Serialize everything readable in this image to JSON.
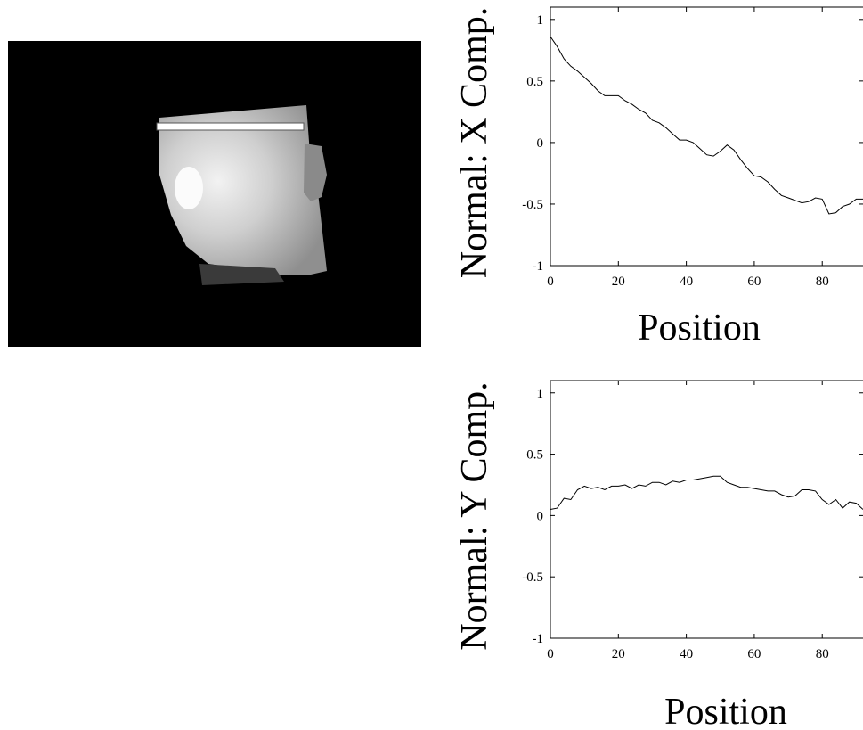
{
  "chart_data": [
    {
      "type": "line",
      "ylabel": "Normal: X Comp.",
      "xlabel": "Position",
      "xlim": [
        0,
        92
      ],
      "ylim": [
        -1,
        1.1
      ],
      "x_ticks": [
        0,
        20,
        40,
        60,
        80
      ],
      "y_ticks": [
        1,
        0.5,
        0,
        -0.5,
        -1
      ],
      "x_tick_labels": [
        "0",
        "20",
        "40",
        "60",
        "80"
      ],
      "y_tick_labels": [
        "1",
        "0.5",
        "0",
        "-0.5",
        "-1"
      ],
      "grid": false,
      "series": [
        {
          "x": [
            0,
            2,
            4,
            6,
            8,
            10,
            12,
            14,
            16,
            18,
            20,
            22,
            24,
            26,
            28,
            30,
            32,
            34,
            36,
            38,
            40,
            42,
            44,
            46,
            48,
            50,
            52,
            54,
            56,
            58,
            60,
            62,
            64,
            66,
            68,
            70,
            72,
            74,
            76,
            78,
            80,
            82,
            84,
            86,
            88,
            90,
            92
          ],
          "values": [
            0.86,
            0.78,
            0.68,
            0.62,
            0.58,
            0.53,
            0.48,
            0.42,
            0.38,
            0.38,
            0.38,
            0.34,
            0.31,
            0.27,
            0.24,
            0.18,
            0.16,
            0.12,
            0.07,
            0.02,
            0.02,
            0.0,
            -0.05,
            -0.1,
            -0.11,
            -0.07,
            -0.02,
            -0.06,
            -0.14,
            -0.21,
            -0.27,
            -0.28,
            -0.32,
            -0.38,
            -0.43,
            -0.45,
            -0.47,
            -0.49,
            -0.48,
            -0.45,
            -0.46,
            -0.58,
            -0.57,
            -0.52,
            -0.5,
            -0.46,
            -0.46
          ]
        }
      ]
    },
    {
      "type": "line",
      "ylabel": "Normal: Y Comp.",
      "xlabel": "Position",
      "xlim": [
        0,
        92
      ],
      "ylim": [
        -1,
        1.1
      ],
      "x_ticks": [
        0,
        20,
        40,
        60,
        80
      ],
      "y_ticks": [
        1,
        0.5,
        0,
        -0.5,
        -1
      ],
      "x_tick_labels": [
        "0",
        "20",
        "40",
        "60",
        "80"
      ],
      "y_tick_labels": [
        "1",
        "0.5",
        "0",
        "-0.5",
        "-1"
      ],
      "grid": false,
      "series": [
        {
          "x": [
            0,
            2,
            4,
            6,
            8,
            10,
            12,
            14,
            16,
            18,
            20,
            22,
            24,
            26,
            28,
            30,
            32,
            34,
            36,
            38,
            40,
            42,
            44,
            46,
            48,
            50,
            52,
            54,
            56,
            58,
            60,
            62,
            64,
            66,
            68,
            70,
            72,
            74,
            76,
            78,
            80,
            82,
            84,
            86,
            88,
            90,
            92
          ],
          "values": [
            0.05,
            0.06,
            0.14,
            0.13,
            0.21,
            0.24,
            0.22,
            0.23,
            0.21,
            0.24,
            0.24,
            0.25,
            0.22,
            0.25,
            0.24,
            0.27,
            0.27,
            0.25,
            0.28,
            0.27,
            0.29,
            0.29,
            0.3,
            0.31,
            0.32,
            0.32,
            0.27,
            0.25,
            0.23,
            0.23,
            0.22,
            0.21,
            0.2,
            0.2,
            0.17,
            0.15,
            0.16,
            0.21,
            0.21,
            0.2,
            0.13,
            0.09,
            0.13,
            0.06,
            0.11,
            0.1,
            0.05
          ]
        }
      ]
    }
  ]
}
